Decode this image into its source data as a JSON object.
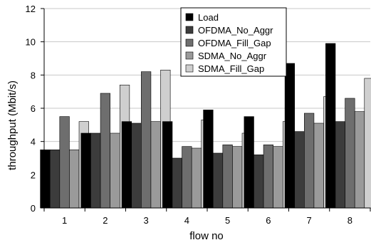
{
  "chart_data": {
    "type": "bar",
    "xlabel": "flow no",
    "ylabel": "throughput (Mbit/s)",
    "ylim": [
      0,
      12
    ],
    "yticks": [
      "0",
      "2",
      "4",
      "6",
      "8",
      "10",
      "12"
    ],
    "categories": [
      "1",
      "2",
      "3",
      "4",
      "5",
      "6",
      "7",
      "8"
    ],
    "grid": "horizontal",
    "legend_position": "top-center",
    "series": [
      {
        "name": "Load",
        "color": "#000000",
        "values": [
          3.5,
          4.5,
          5.2,
          5.2,
          5.9,
          5.5,
          8.7,
          9.9
        ]
      },
      {
        "name": "OFDMA_No_Aggr",
        "color": "#3c3c3c",
        "values": [
          3.5,
          4.5,
          5.1,
          3.0,
          3.3,
          3.2,
          4.6,
          5.2
        ]
      },
      {
        "name": "OFDMA_Fill_Gap",
        "color": "#6e6e6e",
        "values": [
          5.5,
          6.9,
          8.2,
          3.7,
          3.8,
          3.8,
          5.7,
          6.6
        ]
      },
      {
        "name": "SDMA_No_Aggr",
        "color": "#9a9a9a",
        "values": [
          3.5,
          4.5,
          5.2,
          3.6,
          3.7,
          3.7,
          5.1,
          5.8
        ]
      },
      {
        "name": "SDMA_Fill_Gap",
        "color": "#cfcfcf",
        "values": [
          5.2,
          7.4,
          8.3,
          5.3,
          4.5,
          5.2,
          6.7,
          7.8
        ]
      }
    ]
  }
}
